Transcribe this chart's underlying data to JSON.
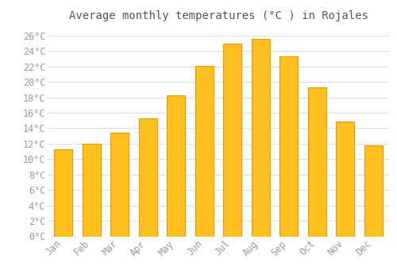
{
  "title": "Average monthly temperatures (°C ) in Rojales",
  "months": [
    "Jan",
    "Feb",
    "Mar",
    "Apr",
    "May",
    "Jun",
    "Jul",
    "Aug",
    "Sep",
    "Oct",
    "Nov",
    "Dec"
  ],
  "values": [
    11.3,
    12.0,
    13.4,
    15.3,
    18.3,
    22.1,
    24.9,
    25.6,
    23.3,
    19.3,
    14.9,
    11.8
  ],
  "bar_color": "#FFC020",
  "bar_edge_color": "#E8960A",
  "background_color": "#FFFFFF",
  "plot_bg_color": "#FFFFFF",
  "grid_color": "#DDDDDD",
  "text_color": "#999999",
  "title_color": "#555555",
  "ylim": [
    0,
    27
  ],
  "yticks": [
    0,
    2,
    4,
    6,
    8,
    10,
    12,
    14,
    16,
    18,
    20,
    22,
    24,
    26
  ],
  "title_fontsize": 10,
  "tick_fontsize": 8.5
}
